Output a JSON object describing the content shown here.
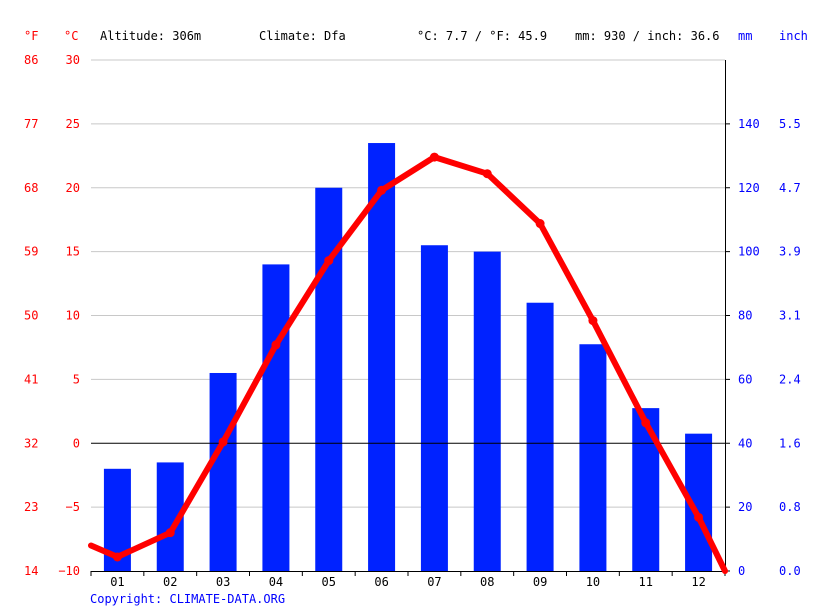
{
  "header": {
    "f_unit": "°F",
    "c_unit": "°C",
    "altitude": "Altitude: 306m",
    "climate": "Climate: Dfa",
    "temp_summary": "°C: 7.7 / °F: 45.9",
    "precip_summary": "mm: 930 / inch: 36.6",
    "mm_unit": "mm",
    "inch_unit": "inch"
  },
  "copyright": "Copyright: CLIMATE-DATA.ORG",
  "colors": {
    "temperature": "#ff0000",
    "precipitation": "#0022ff",
    "grid": "#c8c8c8",
    "zero_line": "#000000"
  },
  "chart_data": {
    "type": "bar",
    "categories": [
      "01",
      "02",
      "03",
      "04",
      "05",
      "06",
      "07",
      "08",
      "09",
      "10",
      "11",
      "12"
    ],
    "series": [
      {
        "type": "bar",
        "axis": "right",
        "values": [
          32,
          34,
          62,
          96,
          120,
          134,
          102,
          100,
          84,
          71,
          51,
          43
        ]
      },
      {
        "type": "line",
        "axis": "left",
        "values": [
          -8.9,
          -7.0,
          0.1,
          7.7,
          14.3,
          19.8,
          22.4,
          21.1,
          17.2,
          9.6,
          1.6,
          -5.8
        ]
      }
    ],
    "y_left": {
      "ylim": [
        -10,
        30
      ],
      "ticks": [
        -10,
        -5,
        0,
        5,
        10,
        15,
        20,
        25,
        30
      ]
    },
    "y_left_f": [
      "14",
      "23",
      "32",
      "41",
      "50",
      "59",
      "68",
      "77",
      "86"
    ],
    "y_right": {
      "ylim": [
        0,
        160
      ],
      "ticks": [
        0,
        20,
        40,
        60,
        80,
        100,
        120,
        140
      ]
    },
    "y_right_inch": [
      "0.0",
      "0.8",
      "1.6",
      "2.4",
      "3.1",
      "3.9",
      "4.7",
      "5.5"
    ],
    "grid": true,
    "line_edges": [
      -8.0,
      -10.0
    ]
  }
}
